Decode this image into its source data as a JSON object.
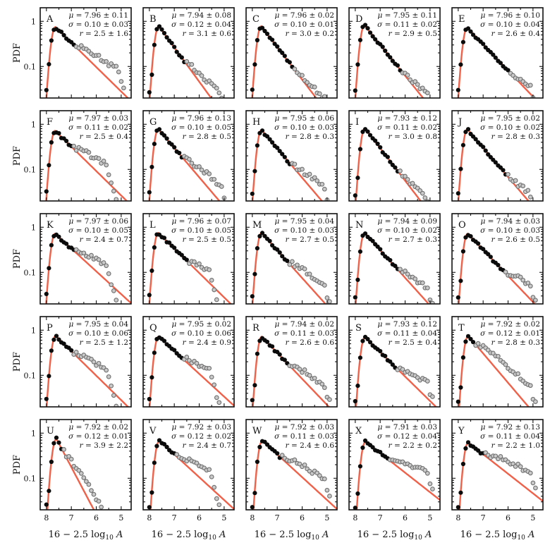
{
  "figure": {
    "ylabel": "PDF",
    "xlabel": "16 − 2.5 log",
    "xlabel_subscript": "10",
    "xlabel_var": "A",
    "x_ticks": [
      "8",
      "7",
      "6",
      "5"
    ],
    "y_ticks": [
      "1",
      "0.1"
    ],
    "stat_labels": {
      "mu": "μ = ",
      "sigma": "σ = ",
      "r": "r = "
    }
  },
  "chart_data": {
    "type": "scatter",
    "description_axes": {
      "x_range": [
        8.25,
        4.6
      ],
      "y_log_range": [
        0.02,
        2.0
      ],
      "y_scale": "log"
    },
    "panels": [
      {
        "letter": "A",
        "mu": "7.96 ± 0.11",
        "sigma": "0.10 ± 0.03",
        "r": "2.5 ± 1.6",
        "mu_v": 7.96,
        "r_v": 2.5,
        "peak": 0.75,
        "cutoff": 6.9,
        "excess": "rise",
        "drop": false
      },
      {
        "letter": "B",
        "mu": "7.94 ± 0.08",
        "sigma": "0.12 ± 0.04",
        "r": "3.1 ± 0.6",
        "mu_v": 7.94,
        "r_v": 3.1,
        "peak": 0.78,
        "cutoff": 6.6,
        "excess": "rise",
        "drop": false
      },
      {
        "letter": "C",
        "mu": "7.96 ± 0.02",
        "sigma": "0.10 ± 0.01",
        "r": "3.0 ± 0.2",
        "mu_v": 7.96,
        "r_v": 3.0,
        "peak": 0.78,
        "cutoff": 6.4,
        "excess": "flat",
        "drop": false
      },
      {
        "letter": "D",
        "mu": "7.95 ± 0.11",
        "sigma": "0.11 ± 0.02",
        "r": "2.9 ± 0.5",
        "mu_v": 7.95,
        "r_v": 2.9,
        "peak": 0.82,
        "cutoff": 6.2,
        "excess": "flat",
        "drop": false
      },
      {
        "letter": "E",
        "mu": "7.96 ± 0.10",
        "sigma": "0.10 ± 0.04",
        "r": "2.6 ± 0.4",
        "mu_v": 7.96,
        "r_v": 2.6,
        "peak": 0.72,
        "cutoff": 6.0,
        "excess": "flat",
        "drop": false
      },
      {
        "letter": "F",
        "mu": "7.97 ± 0.03",
        "sigma": "0.11 ± 0.02",
        "r": "2.5 ± 0.4",
        "mu_v": 7.97,
        "r_v": 2.5,
        "peak": 0.72,
        "cutoff": 7.0,
        "excess": "rise",
        "drop": true
      },
      {
        "letter": "G",
        "mu": "7.96 ± 0.13",
        "sigma": "0.10 ± 0.05",
        "r": "2.8 ± 0.5",
        "mu_v": 7.96,
        "r_v": 2.8,
        "peak": 0.78,
        "cutoff": 6.7,
        "excess": "rise",
        "drop": false
      },
      {
        "letter": "H",
        "mu": "7.95 ± 0.06",
        "sigma": "0.10 ± 0.03",
        "r": "2.8 ± 0.3",
        "mu_v": 7.95,
        "r_v": 2.8,
        "peak": 0.75,
        "cutoff": 6.5,
        "excess": "rise",
        "drop": false
      },
      {
        "letter": "I",
        "mu": "7.93 ± 0.12",
        "sigma": "0.11 ± 0.02",
        "r": "3.0 ± 0.8",
        "mu_v": 7.93,
        "r_v": 3.0,
        "peak": 0.82,
        "cutoff": 6.3,
        "excess": "flat",
        "drop": false
      },
      {
        "letter": "J",
        "mu": "7.95 ± 0.02",
        "sigma": "0.10 ± 0.02",
        "r": "2.8 ± 0.3",
        "mu_v": 7.95,
        "r_v": 2.8,
        "peak": 0.78,
        "cutoff": 6.1,
        "excess": "flat",
        "drop": false
      },
      {
        "letter": "K",
        "mu": "7.97 ± 0.06",
        "sigma": "0.10 ± 0.05",
        "r": "2.4 ± 0.7",
        "mu_v": 7.97,
        "r_v": 2.4,
        "peak": 0.72,
        "cutoff": 6.9,
        "excess": "rise",
        "drop": true
      },
      {
        "letter": "L",
        "mu": "7.96 ± 0.07",
        "sigma": "0.10 ± 0.05",
        "r": "2.5 ± 0.5",
        "mu_v": 7.96,
        "r_v": 2.5,
        "peak": 0.75,
        "cutoff": 6.5,
        "excess": "rise",
        "drop": true
      },
      {
        "letter": "M",
        "mu": "7.95 ± 0.04",
        "sigma": "0.10 ± 0.03",
        "r": "2.7 ± 0.5",
        "mu_v": 7.95,
        "r_v": 2.7,
        "peak": 0.75,
        "cutoff": 6.6,
        "excess": "rise",
        "drop": false
      },
      {
        "letter": "N",
        "mu": "7.94 ± 0.09",
        "sigma": "0.10 ± 0.02",
        "r": "2.7 ± 0.3",
        "mu_v": 7.94,
        "r_v": 2.7,
        "peak": 0.75,
        "cutoff": 6.3,
        "excess": "rise",
        "drop": false
      },
      {
        "letter": "O",
        "mu": "7.94 ± 0.03",
        "sigma": "0.10 ± 0.03",
        "r": "2.6 ± 0.5",
        "mu_v": 7.94,
        "r_v": 2.6,
        "peak": 0.72,
        "cutoff": 6.2,
        "excess": "rise",
        "drop": false
      },
      {
        "letter": "P",
        "mu": "7.95 ± 0.04",
        "sigma": "0.10 ± 0.06",
        "r": "2.5 ± 1.2",
        "mu_v": 7.95,
        "r_v": 2.5,
        "peak": 0.75,
        "cutoff": 7.0,
        "excess": "rise",
        "drop": true
      },
      {
        "letter": "Q",
        "mu": "7.95 ± 0.02",
        "sigma": "0.10 ± 0.06",
        "r": "2.4 ± 0.9",
        "mu_v": 7.95,
        "r_v": 2.4,
        "peak": 0.72,
        "cutoff": 6.7,
        "excess": "rise",
        "drop": true
      },
      {
        "letter": "R",
        "mu": "7.94 ± 0.02",
        "sigma": "0.11 ± 0.03",
        "r": "2.6 ± 0.6",
        "mu_v": 7.94,
        "r_v": 2.6,
        "peak": 0.72,
        "cutoff": 6.6,
        "excess": "rise",
        "drop": false
      },
      {
        "letter": "S",
        "mu": "7.93 ± 0.12",
        "sigma": "0.11 ± 0.04",
        "r": "2.5 ± 0.4",
        "mu_v": 7.93,
        "r_v": 2.5,
        "peak": 0.7,
        "cutoff": 6.4,
        "excess": "rise",
        "drop": false
      },
      {
        "letter": "T",
        "mu": "7.92 ± 0.02",
        "sigma": "0.12 ± 0.01",
        "r": "2.8 ± 0.3",
        "mu_v": 7.92,
        "r_v": 2.8,
        "peak": 0.75,
        "cutoff": 7.4,
        "excess": "rise",
        "drop": false
      },
      {
        "letter": "U",
        "mu": "7.92 ± 0.02",
        "sigma": "0.12 ± 0.01",
        "r": "3.9 ± 2.2",
        "mu_v": 7.92,
        "r_v": 3.9,
        "peak": 0.75,
        "cutoff": 7.4,
        "excess": "rise",
        "drop": true
      },
      {
        "letter": "V",
        "mu": "7.92 ± 0.03",
        "sigma": "0.12 ± 0.02",
        "r": "2.4 ± 0.7",
        "mu_v": 7.92,
        "r_v": 2.4,
        "peak": 0.68,
        "cutoff": 7.0,
        "excess": "rise",
        "drop": true
      },
      {
        "letter": "W",
        "mu": "7.92 ± 0.03",
        "sigma": "0.11 ± 0.03",
        "r": "2.4 ± 0.6",
        "mu_v": 7.92,
        "r_v": 2.4,
        "peak": 0.68,
        "cutoff": 6.9,
        "excess": "rise",
        "drop": false
      },
      {
        "letter": "X",
        "mu": "7.91 ± 0.03",
        "sigma": "0.12 ± 0.04",
        "r": "2.2 ± 0.2",
        "mu_v": 7.91,
        "r_v": 2.2,
        "peak": 0.65,
        "cutoff": 6.7,
        "excess": "rise",
        "drop": false
      },
      {
        "letter": "Y",
        "mu": "7.92 ± 0.13",
        "sigma": "0.11 ± 0.04",
        "r": "2.2 ± 1.0",
        "mu_v": 7.92,
        "r_v": 2.2,
        "peak": 0.62,
        "cutoff": 7.0,
        "excess": "rise",
        "drop": false
      }
    ]
  }
}
